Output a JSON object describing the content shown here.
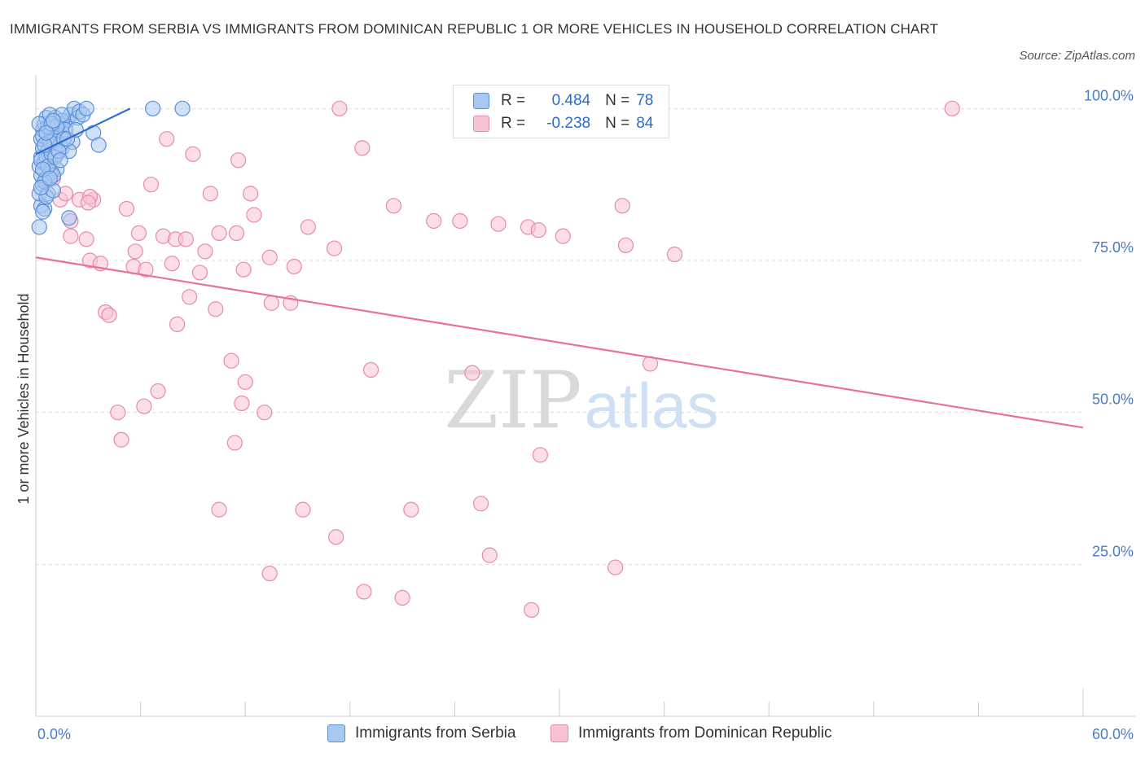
{
  "title": "IMMIGRANTS FROM SERBIA VS IMMIGRANTS FROM DOMINICAN REPUBLIC 1 OR MORE VEHICLES IN HOUSEHOLD CORRELATION CHART",
  "source": "Source: ZipAtlas.com",
  "watermark": {
    "zip": "ZIP",
    "atlas": "atlas"
  },
  "legend": {
    "r_label": "R =",
    "n_label": "N =",
    "series1": {
      "r": "0.484",
      "n": "78"
    },
    "series2": {
      "r": "-0.238",
      "n": "84"
    }
  },
  "colors": {
    "serbia_fill": "#a9c8f0",
    "serbia_stroke": "#5a8fd8",
    "serbia_line": "#2e6fd0",
    "dom_fill": "#f7c3d3",
    "dom_stroke": "#e88aa8",
    "dom_line": "#e8709a"
  },
  "chart_data": {
    "type": "scatter",
    "title": "IMMIGRANTS FROM SERBIA VS IMMIGRANTS FROM DOMINICAN REPUBLIC 1 OR MORE VEHICLES IN HOUSEHOLD CORRELATION CHART",
    "xlabel": "",
    "ylabel": "1 or more Vehicles in Household",
    "xlim": [
      0,
      60
    ],
    "ylim": [
      0,
      105
    ],
    "x_tick_labels": [
      "0.0%",
      "60.0%"
    ],
    "y_ticks": [
      25,
      50,
      75,
      100
    ],
    "y_tick_labels": [
      "25.0%",
      "50.0%",
      "75.0%",
      "100.0%"
    ],
    "legend_position": "bottom",
    "series": [
      {
        "name": "Immigrants from Serbia",
        "trend": {
          "x": [
            0.0,
            5.4
          ],
          "y": [
            92.5,
            100.0
          ]
        },
        "points": [
          [
            0.2,
            80.5
          ],
          [
            0.3,
            84.0
          ],
          [
            0.2,
            86.0
          ],
          [
            0.4,
            87.5
          ],
          [
            0.3,
            89.0
          ],
          [
            0.2,
            90.5
          ],
          [
            0.3,
            92.0
          ],
          [
            0.4,
            93.5
          ],
          [
            0.3,
            95.0
          ],
          [
            0.4,
            96.5
          ],
          [
            0.5,
            97.5
          ],
          [
            0.6,
            98.5
          ],
          [
            0.5,
            91.0
          ],
          [
            0.6,
            88.5
          ],
          [
            0.7,
            86.0
          ],
          [
            0.5,
            83.5
          ],
          [
            0.8,
            95.0
          ],
          [
            0.9,
            96.0
          ],
          [
            0.7,
            93.0
          ],
          [
            0.8,
            91.5
          ],
          [
            1.0,
            97.0
          ],
          [
            1.1,
            98.5
          ],
          [
            1.0,
            94.5
          ],
          [
            1.2,
            92.5
          ],
          [
            1.3,
            96.0
          ],
          [
            1.4,
            95.5
          ],
          [
            1.5,
            93.5
          ],
          [
            1.2,
            90.0
          ],
          [
            0.9,
            89.5
          ],
          [
            1.6,
            97.5
          ],
          [
            1.8,
            98.0
          ],
          [
            2.0,
            99.0
          ],
          [
            2.2,
            100.0
          ],
          [
            2.4,
            98.5
          ],
          [
            2.1,
            94.5
          ],
          [
            1.9,
            93.0
          ],
          [
            2.5,
            99.5
          ],
          [
            2.7,
            99.0
          ],
          [
            2.9,
            100.0
          ],
          [
            3.3,
            96.0
          ],
          [
            3.6,
            94.0
          ],
          [
            1.9,
            82.0
          ],
          [
            1.0,
            89.0
          ],
          [
            0.6,
            92.0
          ],
          [
            0.4,
            95.5
          ],
          [
            0.7,
            97.0
          ],
          [
            1.1,
            95.0
          ],
          [
            1.3,
            97.5
          ],
          [
            0.8,
            99.0
          ],
          [
            1.5,
            98.0
          ],
          [
            6.7,
            100.0
          ],
          [
            8.4,
            100.0
          ],
          [
            0.3,
            91.5
          ],
          [
            0.5,
            88.0
          ],
          [
            0.9,
            92.5
          ],
          [
            1.4,
            94.0
          ],
          [
            1.7,
            96.5
          ],
          [
            0.6,
            85.5
          ],
          [
            0.4,
            83.0
          ],
          [
            1.0,
            86.5
          ],
          [
            0.2,
            97.5
          ],
          [
            0.8,
            94.5
          ],
          [
            1.2,
            97.0
          ],
          [
            1.6,
            95.0
          ],
          [
            0.5,
            94.0
          ],
          [
            0.7,
            90.5
          ],
          [
            1.1,
            92.0
          ],
          [
            0.3,
            87.0
          ],
          [
            1.8,
            95.0
          ],
          [
            0.9,
            97.5
          ],
          [
            1.3,
            93.0
          ],
          [
            0.6,
            96.0
          ],
          [
            1.5,
            99.0
          ],
          [
            2.3,
            96.5
          ],
          [
            0.4,
            90.0
          ],
          [
            0.8,
            88.5
          ],
          [
            1.0,
            98.0
          ],
          [
            1.4,
            91.5
          ]
        ]
      },
      {
        "name": "Immigrants from Dominican Republic",
        "trend": {
          "x": [
            0.0,
            60.0
          ],
          "y": [
            75.5,
            47.5
          ]
        },
        "points": [
          [
            0.5,
            91.5
          ],
          [
            0.8,
            89.5
          ],
          [
            0.6,
            88.0
          ],
          [
            1.0,
            88.5
          ],
          [
            1.4,
            85.0
          ],
          [
            1.7,
            86.0
          ],
          [
            2.0,
            81.5
          ],
          [
            2.5,
            85.0
          ],
          [
            3.3,
            85.0
          ],
          [
            3.1,
            85.5
          ],
          [
            2.9,
            78.5
          ],
          [
            3.1,
            75.0
          ],
          [
            3.7,
            74.5
          ],
          [
            4.0,
            66.5
          ],
          [
            4.2,
            66.0
          ],
          [
            5.2,
            83.5
          ],
          [
            5.7,
            76.5
          ],
          [
            5.6,
            74.0
          ],
          [
            5.9,
            79.5
          ],
          [
            6.3,
            73.5
          ],
          [
            6.6,
            87.5
          ],
          [
            7.3,
            79.0
          ],
          [
            7.5,
            95.0
          ],
          [
            7.8,
            74.5
          ],
          [
            8.0,
            78.5
          ],
          [
            8.6,
            78.5
          ],
          [
            8.1,
            64.5
          ],
          [
            8.8,
            69.0
          ],
          [
            9.0,
            92.5
          ],
          [
            9.4,
            73.0
          ],
          [
            9.7,
            76.5
          ],
          [
            10.0,
            86.0
          ],
          [
            10.3,
            67.0
          ],
          [
            10.5,
            79.5
          ],
          [
            11.2,
            58.5
          ],
          [
            11.6,
            91.5
          ],
          [
            11.5,
            79.5
          ],
          [
            11.9,
            73.5
          ],
          [
            12.3,
            86.0
          ],
          [
            12.5,
            82.5
          ],
          [
            13.4,
            75.5
          ],
          [
            13.5,
            68.0
          ],
          [
            14.6,
            68.0
          ],
          [
            14.8,
            74.0
          ],
          [
            15.6,
            80.5
          ],
          [
            17.1,
            77.0
          ],
          [
            17.4,
            100.0
          ],
          [
            18.7,
            93.5
          ],
          [
            20.5,
            84.0
          ],
          [
            22.8,
            81.5
          ],
          [
            24.3,
            81.5
          ],
          [
            26.5,
            81.0
          ],
          [
            28.2,
            80.5
          ],
          [
            28.8,
            80.0
          ],
          [
            30.2,
            79.0
          ],
          [
            33.6,
            84.0
          ],
          [
            33.8,
            77.5
          ],
          [
            35.2,
            58.0
          ],
          [
            36.6,
            76.0
          ],
          [
            52.5,
            100.0
          ],
          [
            4.7,
            50.0
          ],
          [
            4.9,
            45.5
          ],
          [
            6.2,
            51.0
          ],
          [
            7.0,
            53.5
          ],
          [
            10.5,
            34.0
          ],
          [
            11.4,
            45.0
          ],
          [
            11.8,
            51.5
          ],
          [
            12.0,
            55.0
          ],
          [
            13.1,
            50.0
          ],
          [
            13.4,
            23.5
          ],
          [
            15.3,
            34.0
          ],
          [
            17.2,
            29.5
          ],
          [
            18.8,
            20.5
          ],
          [
            19.2,
            57.0
          ],
          [
            21.0,
            19.5
          ],
          [
            21.5,
            34.0
          ],
          [
            25.5,
            35.0
          ],
          [
            25.0,
            56.5
          ],
          [
            26.0,
            26.5
          ],
          [
            28.4,
            17.5
          ],
          [
            28.9,
            43.0
          ],
          [
            33.2,
            24.5
          ],
          [
            2.0,
            79.0
          ],
          [
            3.0,
            84.5
          ]
        ]
      }
    ]
  },
  "bottom_legend": {
    "serbia": "Immigrants from Serbia",
    "dominican": "Immigrants from Dominican Republic"
  }
}
